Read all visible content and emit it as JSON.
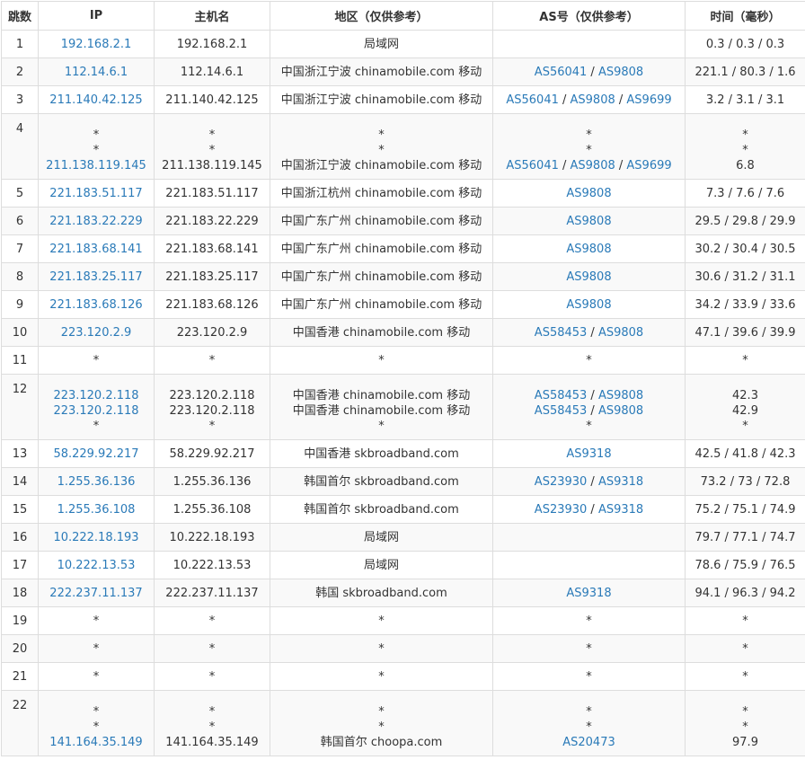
{
  "headers": [
    "跳数",
    "IP",
    "主机名",
    "地区（仅供参考）",
    "AS号（仅供参考）",
    "时间（毫秒）"
  ],
  "rows": [
    {
      "hop": "1",
      "ip": [
        "192.168.2.1"
      ],
      "host": [
        "192.168.2.1"
      ],
      "region": [
        "局域网"
      ],
      "as": [
        []
      ],
      "time": [
        "0.3 / 0.3 / 0.3"
      ]
    },
    {
      "hop": "2",
      "ip": [
        "112.14.6.1"
      ],
      "host": [
        "112.14.6.1"
      ],
      "region": [
        "中国浙江宁波 chinamobile.com 移动"
      ],
      "as": [
        [
          "AS56041",
          "AS9808"
        ]
      ],
      "time": [
        "221.1 / 80.3 / 1.6"
      ]
    },
    {
      "hop": "3",
      "ip": [
        "211.140.42.125"
      ],
      "host": [
        "211.140.42.125"
      ],
      "region": [
        "中国浙江宁波 chinamobile.com 移动"
      ],
      "as": [
        [
          "AS56041",
          "AS9808",
          "AS9699"
        ]
      ],
      "time": [
        "3.2 / 3.1 / 3.1"
      ]
    },
    {
      "hop": "4",
      "ip": [
        "*",
        "*",
        "211.138.119.145"
      ],
      "host": [
        "*",
        "*",
        "211.138.119.145"
      ],
      "region": [
        "*",
        "*",
        "中国浙江宁波 chinamobile.com 移动"
      ],
      "as": [
        [
          "*"
        ],
        [
          "*"
        ],
        [
          "AS56041",
          "AS9808",
          "AS9699"
        ]
      ],
      "time": [
        "*",
        "*",
        "6.8"
      ]
    },
    {
      "hop": "5",
      "ip": [
        "221.183.51.117"
      ],
      "host": [
        "221.183.51.117"
      ],
      "region": [
        "中国浙江杭州 chinamobile.com 移动"
      ],
      "as": [
        [
          "AS9808"
        ]
      ],
      "time": [
        "7.3 / 7.6 / 7.6"
      ]
    },
    {
      "hop": "6",
      "ip": [
        "221.183.22.229"
      ],
      "host": [
        "221.183.22.229"
      ],
      "region": [
        "中国广东广州 chinamobile.com 移动"
      ],
      "as": [
        [
          "AS9808"
        ]
      ],
      "time": [
        "29.5 / 29.8 / 29.9"
      ]
    },
    {
      "hop": "7",
      "ip": [
        "221.183.68.141"
      ],
      "host": [
        "221.183.68.141"
      ],
      "region": [
        "中国广东广州 chinamobile.com 移动"
      ],
      "as": [
        [
          "AS9808"
        ]
      ],
      "time": [
        "30.2 / 30.4 / 30.5"
      ]
    },
    {
      "hop": "8",
      "ip": [
        "221.183.25.117"
      ],
      "host": [
        "221.183.25.117"
      ],
      "region": [
        "中国广东广州 chinamobile.com 移动"
      ],
      "as": [
        [
          "AS9808"
        ]
      ],
      "time": [
        "30.6 / 31.2 / 31.1"
      ]
    },
    {
      "hop": "9",
      "ip": [
        "221.183.68.126"
      ],
      "host": [
        "221.183.68.126"
      ],
      "region": [
        "中国广东广州 chinamobile.com 移动"
      ],
      "as": [
        [
          "AS9808"
        ]
      ],
      "time": [
        "34.2 / 33.9 / 33.6"
      ]
    },
    {
      "hop": "10",
      "ip": [
        "223.120.2.9"
      ],
      "host": [
        "223.120.2.9"
      ],
      "region": [
        "中国香港 chinamobile.com 移动"
      ],
      "as": [
        [
          "AS58453",
          "AS9808"
        ]
      ],
      "time": [
        "47.1 / 39.6 / 39.9"
      ]
    },
    {
      "hop": "11",
      "ip": [
        "*"
      ],
      "host": [
        "*"
      ],
      "region": [
        "*"
      ],
      "as": [
        [
          "*"
        ]
      ],
      "time": [
        "*"
      ]
    },
    {
      "hop": "12",
      "ip": [
        "223.120.2.118",
        "223.120.2.118",
        "*"
      ],
      "host": [
        "223.120.2.118",
        "223.120.2.118",
        "*"
      ],
      "region": [
        "中国香港 chinamobile.com 移动",
        "中国香港 chinamobile.com 移动",
        "*"
      ],
      "as": [
        [
          "AS58453",
          "AS9808"
        ],
        [
          "AS58453",
          "AS9808"
        ],
        [
          "*"
        ]
      ],
      "time": [
        "42.3",
        "42.9",
        "*"
      ]
    },
    {
      "hop": "13",
      "ip": [
        "58.229.92.217"
      ],
      "host": [
        "58.229.92.217"
      ],
      "region": [
        "中国香港 skbroadband.com"
      ],
      "as": [
        [
          "AS9318"
        ]
      ],
      "time": [
        "42.5 / 41.8 / 42.3"
      ]
    },
    {
      "hop": "14",
      "ip": [
        "1.255.36.136"
      ],
      "host": [
        "1.255.36.136"
      ],
      "region": [
        "韩国首尔 skbroadband.com"
      ],
      "as": [
        [
          "AS23930",
          "AS9318"
        ]
      ],
      "time": [
        "73.2 / 73 / 72.8"
      ]
    },
    {
      "hop": "15",
      "ip": [
        "1.255.36.108"
      ],
      "host": [
        "1.255.36.108"
      ],
      "region": [
        "韩国首尔 skbroadband.com"
      ],
      "as": [
        [
          "AS23930",
          "AS9318"
        ]
      ],
      "time": [
        "75.2 / 75.1 / 74.9"
      ]
    },
    {
      "hop": "16",
      "ip": [
        "10.222.18.193"
      ],
      "host": [
        "10.222.18.193"
      ],
      "region": [
        "局域网"
      ],
      "as": [
        []
      ],
      "time": [
        "79.7 / 77.1 / 74.7"
      ]
    },
    {
      "hop": "17",
      "ip": [
        "10.222.13.53"
      ],
      "host": [
        "10.222.13.53"
      ],
      "region": [
        "局域网"
      ],
      "as": [
        []
      ],
      "time": [
        "78.6 / 75.9 / 76.5"
      ]
    },
    {
      "hop": "18",
      "ip": [
        "222.237.11.137"
      ],
      "host": [
        "222.237.11.137"
      ],
      "region": [
        "韩国 skbroadband.com"
      ],
      "as": [
        [
          "AS9318"
        ]
      ],
      "time": [
        "94.1 / 96.3 / 94.2"
      ]
    },
    {
      "hop": "19",
      "ip": [
        "*"
      ],
      "host": [
        "*"
      ],
      "region": [
        "*"
      ],
      "as": [
        [
          "*"
        ]
      ],
      "time": [
        "*"
      ]
    },
    {
      "hop": "20",
      "ip": [
        "*"
      ],
      "host": [
        "*"
      ],
      "region": [
        "*"
      ],
      "as": [
        [
          "*"
        ]
      ],
      "time": [
        "*"
      ]
    },
    {
      "hop": "21",
      "ip": [
        "*"
      ],
      "host": [
        "*"
      ],
      "region": [
        "*"
      ],
      "as": [
        [
          "*"
        ]
      ],
      "time": [
        "*"
      ]
    },
    {
      "hop": "22",
      "ip": [
        "*",
        "*",
        "141.164.35.149"
      ],
      "host": [
        "*",
        "*",
        "141.164.35.149"
      ],
      "region": [
        "*",
        "*",
        "韩国首尔 choopa.com"
      ],
      "as": [
        [
          "*"
        ],
        [
          "*"
        ],
        [
          "AS20473"
        ]
      ],
      "time": [
        "*",
        "*",
        "97.9"
      ]
    }
  ],
  "colors": {
    "link": "#2a7ab8",
    "border": "#dddddd",
    "alt_row": "#f9f9f9"
  }
}
